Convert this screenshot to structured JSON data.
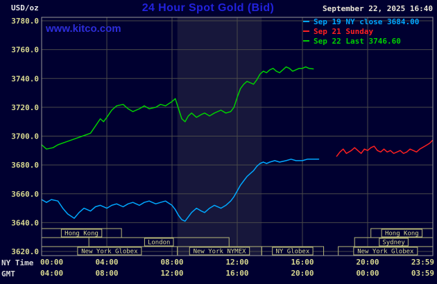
{
  "header": {
    "title": "24 Hour Spot Gold (Bid)",
    "datetime": "September 22, 2025 16:40",
    "watermark": "www.kitco.com",
    "unit_label": "USD/oz"
  },
  "legend": [
    {
      "label": "Sep 19 NY close 3684.00",
      "color": "#00a8ff"
    },
    {
      "label": "Sep 21 Sunday",
      "color": "#ff2020"
    },
    {
      "label": "Sep 22 Last 3746.60",
      "color": "#00d000"
    }
  ],
  "axes": {
    "row_labels": {
      "ny": "NY Time",
      "gmt": "GMT"
    }
  },
  "sessions": [
    {
      "row": 0,
      "label": "Hong Kong",
      "start": 0,
      "end": 4.9
    },
    {
      "row": 0,
      "label": "Hong Kong",
      "start": 20.2,
      "end": 24
    },
    {
      "row": 1,
      "label": "London",
      "start": 2.9,
      "end": 11.5
    },
    {
      "row": 1,
      "label": "Sydney",
      "start": 19.2,
      "end": 24
    },
    {
      "row": 2,
      "label": "New York Globex",
      "start": 0,
      "end": 8.33
    },
    {
      "row": 2,
      "label": "New York NYMEX",
      "start": 8.33,
      "end": 13.5
    },
    {
      "row": 2,
      "label": "NY Globex",
      "start": 13.5,
      "end": 17.3
    },
    {
      "row": 2,
      "label": "New York Globex",
      "start": 18.2,
      "end": 24
    }
  ],
  "chart_data": {
    "type": "line",
    "title": "24 Hour Spot Gold (Bid)",
    "ylabel": "USD/oz",
    "ylim": [
      3620,
      3780
    ],
    "y_tick_step": 20,
    "grid": true,
    "legend_position": "top-right",
    "background": "#000030",
    "y_tick_labels": [
      "3780.0",
      "3760.0",
      "3740.0",
      "3720.0",
      "3700.0",
      "3680.0",
      "3660.0",
      "3640.0",
      "3620.0"
    ],
    "x_gridline_hours": [
      4,
      8,
      12,
      16,
      20
    ],
    "x_ticks": [
      {
        "hour": 0,
        "ny": "00:00",
        "gmt": "04:00"
      },
      {
        "hour": 4,
        "ny": "04:00",
        "gmt": "08:00"
      },
      {
        "hour": 8,
        "ny": "08:00",
        "gmt": "12:00"
      },
      {
        "hour": 12,
        "ny": "12:00",
        "gmt": "16:00"
      },
      {
        "hour": 16,
        "ny": "16:00",
        "gmt": "20:00"
      },
      {
        "hour": 20,
        "ny": "20:00",
        "gmt": "00:00"
      },
      {
        "hour": 23.983,
        "ny": "23:59",
        "gmt": "03:59"
      }
    ],
    "shaded_band_hours": [
      8.33,
      13.5
    ],
    "series": [
      {
        "id": "sep19",
        "name": "Sep 19 NY close 3684.00",
        "color": "#00a8ff",
        "points": [
          [
            0,
            3656
          ],
          [
            0.3,
            3654
          ],
          [
            0.6,
            3656
          ],
          [
            1,
            3655
          ],
          [
            1.3,
            3650
          ],
          [
            1.6,
            3646
          ],
          [
            2,
            3643
          ],
          [
            2.3,
            3647
          ],
          [
            2.6,
            3650
          ],
          [
            3,
            3648
          ],
          [
            3.3,
            3651
          ],
          [
            3.6,
            3652
          ],
          [
            4,
            3650
          ],
          [
            4.3,
            3652
          ],
          [
            4.6,
            3653
          ],
          [
            5,
            3651
          ],
          [
            5.3,
            3653
          ],
          [
            5.6,
            3654
          ],
          [
            6,
            3652
          ],
          [
            6.3,
            3654
          ],
          [
            6.6,
            3655
          ],
          [
            7,
            3653
          ],
          [
            7.3,
            3654
          ],
          [
            7.6,
            3655
          ],
          [
            8,
            3652
          ],
          [
            8.2,
            3649
          ],
          [
            8.4,
            3645
          ],
          [
            8.6,
            3642
          ],
          [
            8.8,
            3641
          ],
          [
            9,
            3644
          ],
          [
            9.2,
            3647
          ],
          [
            9.5,
            3650
          ],
          [
            9.8,
            3648
          ],
          [
            10,
            3647
          ],
          [
            10.3,
            3650
          ],
          [
            10.6,
            3652
          ],
          [
            11,
            3650
          ],
          [
            11.3,
            3652
          ],
          [
            11.6,
            3655
          ],
          [
            11.8,
            3658
          ],
          [
            12,
            3662
          ],
          [
            12.2,
            3666
          ],
          [
            12.4,
            3669
          ],
          [
            12.6,
            3672
          ],
          [
            12.8,
            3674
          ],
          [
            13,
            3676
          ],
          [
            13.2,
            3679
          ],
          [
            13.4,
            3681
          ],
          [
            13.6,
            3682
          ],
          [
            13.8,
            3681
          ],
          [
            14,
            3682
          ],
          [
            14.3,
            3683
          ],
          [
            14.6,
            3682
          ],
          [
            15,
            3683
          ],
          [
            15.3,
            3684
          ],
          [
            15.6,
            3683
          ],
          [
            16,
            3683
          ],
          [
            16.3,
            3684
          ],
          [
            16.6,
            3684
          ],
          [
            17,
            3684
          ]
        ]
      },
      {
        "id": "sep21",
        "name": "Sep 21 Sunday",
        "color": "#ff2020",
        "points": [
          [
            18.1,
            3686
          ],
          [
            18.3,
            3689
          ],
          [
            18.5,
            3691
          ],
          [
            18.7,
            3688
          ],
          [
            19,
            3690
          ],
          [
            19.2,
            3692
          ],
          [
            19.4,
            3690
          ],
          [
            19.6,
            3688
          ],
          [
            19.8,
            3691
          ],
          [
            20,
            3690
          ],
          [
            20.2,
            3692
          ],
          [
            20.4,
            3693
          ],
          [
            20.6,
            3690
          ],
          [
            20.8,
            3689
          ],
          [
            21,
            3691
          ],
          [
            21.2,
            3689
          ],
          [
            21.4,
            3690
          ],
          [
            21.6,
            3688
          ],
          [
            21.8,
            3689
          ],
          [
            22,
            3690
          ],
          [
            22.2,
            3688
          ],
          [
            22.4,
            3689
          ],
          [
            22.6,
            3691
          ],
          [
            22.8,
            3690
          ],
          [
            23,
            3689
          ],
          [
            23.2,
            3691
          ],
          [
            23.5,
            3693
          ],
          [
            23.8,
            3695
          ],
          [
            23.98,
            3697
          ]
        ]
      },
      {
        "id": "sep22",
        "name": "Sep 22 Last 3746.60",
        "color": "#00d000",
        "points": [
          [
            0,
            3694
          ],
          [
            0.3,
            3691
          ],
          [
            0.7,
            3692
          ],
          [
            1,
            3694
          ],
          [
            1.5,
            3696
          ],
          [
            2,
            3698
          ],
          [
            2.5,
            3700
          ],
          [
            3,
            3702
          ],
          [
            3.3,
            3707
          ],
          [
            3.6,
            3712
          ],
          [
            3.8,
            3710
          ],
          [
            4,
            3713
          ],
          [
            4.3,
            3718
          ],
          [
            4.6,
            3721
          ],
          [
            5,
            3722
          ],
          [
            5.3,
            3719
          ],
          [
            5.6,
            3717
          ],
          [
            6,
            3719
          ],
          [
            6.3,
            3721
          ],
          [
            6.6,
            3719
          ],
          [
            7,
            3720
          ],
          [
            7.3,
            3722
          ],
          [
            7.6,
            3721
          ],
          [
            8,
            3724
          ],
          [
            8.2,
            3726
          ],
          [
            8.4,
            3719
          ],
          [
            8.6,
            3712
          ],
          [
            8.8,
            3710
          ],
          [
            9,
            3714
          ],
          [
            9.2,
            3716
          ],
          [
            9.5,
            3713
          ],
          [
            9.8,
            3715
          ],
          [
            10,
            3716
          ],
          [
            10.3,
            3714
          ],
          [
            10.6,
            3716
          ],
          [
            11,
            3718
          ],
          [
            11.3,
            3716
          ],
          [
            11.6,
            3717
          ],
          [
            11.8,
            3720
          ],
          [
            12,
            3727
          ],
          [
            12.2,
            3733
          ],
          [
            12.4,
            3736
          ],
          [
            12.6,
            3738
          ],
          [
            12.8,
            3737
          ],
          [
            13,
            3736
          ],
          [
            13.2,
            3739
          ],
          [
            13.4,
            3743
          ],
          [
            13.6,
            3745
          ],
          [
            13.8,
            3744
          ],
          [
            14,
            3746
          ],
          [
            14.2,
            3747
          ],
          [
            14.4,
            3745
          ],
          [
            14.6,
            3744
          ],
          [
            14.8,
            3746
          ],
          [
            15,
            3748
          ],
          [
            15.2,
            3747
          ],
          [
            15.4,
            3745
          ],
          [
            15.6,
            3746
          ],
          [
            15.8,
            3747
          ],
          [
            16,
            3747
          ],
          [
            16.2,
            3748
          ],
          [
            16.4,
            3747
          ],
          [
            16.67,
            3746.6
          ]
        ]
      }
    ]
  },
  "style_colors": {
    "background": "#000030",
    "grid": "#4a4a4a",
    "plot_border": "#999999",
    "tick_text": "#d8d890",
    "session_border": "#b8b878",
    "band_fill": "#8c8c78"
  }
}
